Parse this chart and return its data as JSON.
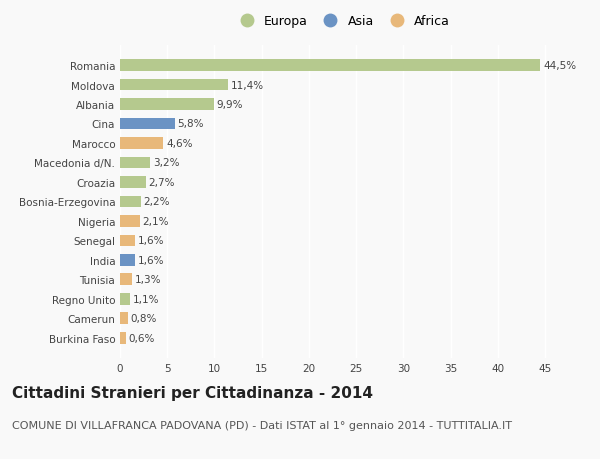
{
  "countries": [
    "Romania",
    "Moldova",
    "Albania",
    "Cina",
    "Marocco",
    "Macedonia d/N.",
    "Croazia",
    "Bosnia-Erzegovina",
    "Nigeria",
    "Senegal",
    "India",
    "Tunisia",
    "Regno Unito",
    "Camerun",
    "Burkina Faso"
  ],
  "values": [
    44.5,
    11.4,
    9.9,
    5.8,
    4.6,
    3.2,
    2.7,
    2.2,
    2.1,
    1.6,
    1.6,
    1.3,
    1.1,
    0.8,
    0.6
  ],
  "labels": [
    "44,5%",
    "11,4%",
    "9,9%",
    "5,8%",
    "4,6%",
    "3,2%",
    "2,7%",
    "2,2%",
    "2,1%",
    "1,6%",
    "1,6%",
    "1,3%",
    "1,1%",
    "0,8%",
    "0,6%"
  ],
  "continents": [
    "Europa",
    "Europa",
    "Europa",
    "Asia",
    "Africa",
    "Europa",
    "Europa",
    "Europa",
    "Africa",
    "Africa",
    "Asia",
    "Africa",
    "Europa",
    "Africa",
    "Africa"
  ],
  "colors": {
    "Europa": "#b5c98e",
    "Asia": "#6b93c4",
    "Africa": "#e8b87a"
  },
  "bg_color": "#f9f9f9",
  "title": "Cittadini Stranieri per Cittadinanza - 2014",
  "subtitle": "COMUNE DI VILLAFRANCA PADOVANA (PD) - Dati ISTAT al 1° gennaio 2014 - TUTTITALIA.IT",
  "xlim": [
    0,
    47
  ],
  "xticks": [
    0,
    5,
    10,
    15,
    20,
    25,
    30,
    35,
    40,
    45
  ],
  "grid_color": "#ffffff",
  "title_fontsize": 11,
  "subtitle_fontsize": 8,
  "label_fontsize": 7.5,
  "tick_fontsize": 7.5,
  "legend_fontsize": 9
}
